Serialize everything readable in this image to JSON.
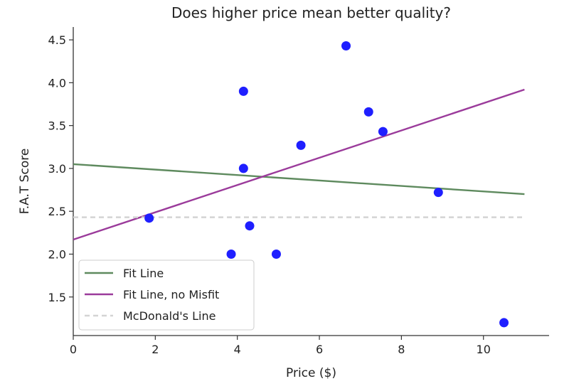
{
  "chart_data": {
    "type": "scatter",
    "title": "Does higher price mean better quality?",
    "xlabel": "Price ($)",
    "ylabel": "F.A.T Score",
    "xlim": [
      0,
      11.6
    ],
    "ylim": [
      1.05,
      4.65
    ],
    "xticks": [
      0,
      2,
      4,
      6,
      8,
      10
    ],
    "xtick_labels": [
      "0",
      "2",
      "4",
      "6",
      "8",
      "10"
    ],
    "yticks": [
      1.5,
      2.0,
      2.5,
      3.0,
      3.5,
      4.0,
      4.5
    ],
    "ytick_labels": [
      "1.5",
      "2.0",
      "2.5",
      "3.0",
      "3.5",
      "4.0",
      "4.5"
    ],
    "grid": false,
    "legend_position": "lower-left",
    "points": {
      "color": "#1f1fff",
      "x": [
        1.85,
        3.85,
        4.15,
        4.15,
        4.3,
        4.95,
        5.55,
        6.65,
        7.2,
        7.55,
        8.9,
        10.5
      ],
      "y": [
        2.42,
        2.0,
        3.9,
        3.0,
        2.33,
        2.0,
        3.27,
        4.43,
        3.66,
        3.43,
        2.72,
        1.2
      ]
    },
    "series": [
      {
        "name": "Fit Line",
        "type": "line",
        "color": "#5e8a5e",
        "x": [
          0,
          11
        ],
        "y": [
          3.05,
          2.7
        ]
      },
      {
        "name": "Fit Line, no Misfit",
        "type": "line",
        "color": "#9b3b9b",
        "x": [
          0,
          11
        ],
        "y": [
          2.17,
          3.92
        ]
      },
      {
        "name": "McDonald's Line",
        "type": "hline",
        "style": "dashed",
        "color": "#d4d4d4",
        "x": [
          0,
          11
        ],
        "y": [
          2.43,
          2.43
        ]
      }
    ]
  }
}
